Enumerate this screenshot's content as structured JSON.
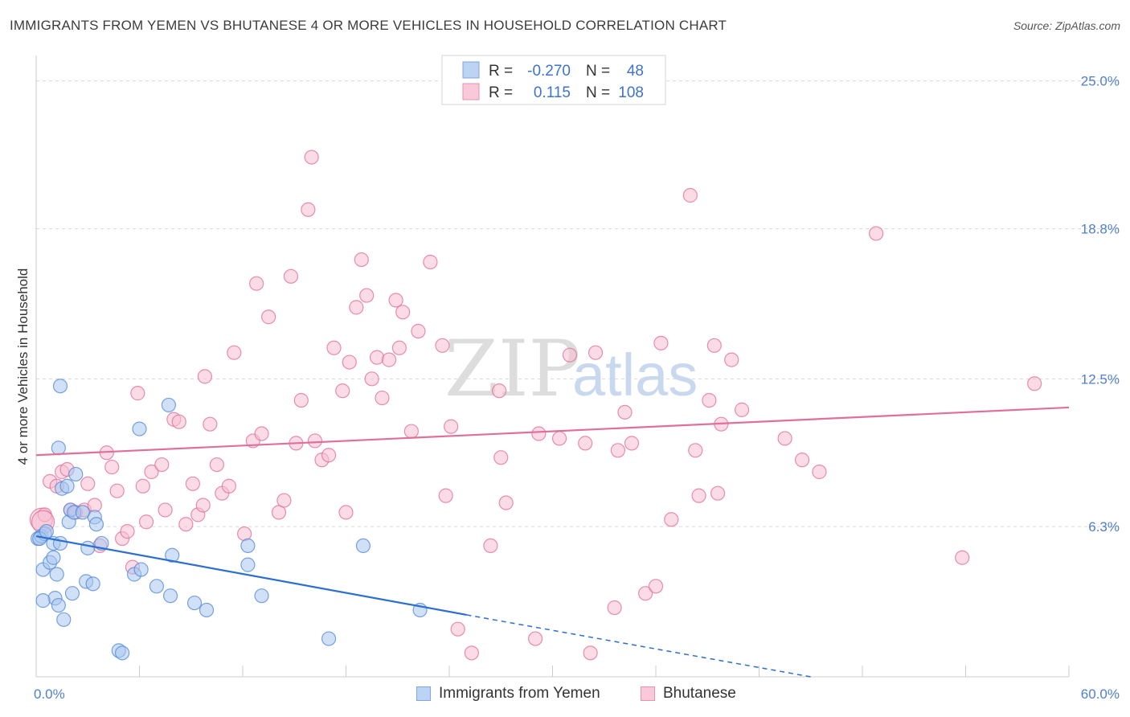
{
  "title": "IMMIGRANTS FROM YEMEN VS BHUTANESE 4 OR MORE VEHICLES IN HOUSEHOLD CORRELATION CHART",
  "source": "Source: ZipAtlas.com",
  "watermark": {
    "zip": "ZIP",
    "atlas": "atlas"
  },
  "colors": {
    "blue": "#4f86d8",
    "blue_fill": "#a9c6ee",
    "blue_line": "#2b6fd0",
    "pink": "#e06a97",
    "pink_fill": "#f7bfd2",
    "pink_line": "#e0709a",
    "grid": "#d9d9d9",
    "axis_text": "#4f7fd0"
  },
  "legend": {
    "rows": [
      {
        "r_label": "R =",
        "r_value": "-0.270",
        "n_label": "N =",
        "n_value": "48",
        "color": "blue"
      },
      {
        "r_label": "R =",
        "r_value": "0.115",
        "n_label": "N =",
        "n_value": "108",
        "color": "pink"
      }
    ]
  },
  "bottom_legend": [
    {
      "label": "Immigrants from Yemen",
      "color": "blue"
    },
    {
      "label": "Bhutanese",
      "color": "pink"
    }
  ],
  "chart_data": {
    "type": "scatter",
    "title": "IMMIGRANTS FROM YEMEN VS BHUTANESE 4 OR MORE VEHICLES IN HOUSEHOLD CORRELATION CHART",
    "xlabel": "",
    "ylabel": "4 or more Vehicles in Household",
    "xlim": [
      0,
      60
    ],
    "ylim": [
      0,
      26
    ],
    "x_tick_labels": [
      {
        "value": 0,
        "label": "0.0%"
      },
      {
        "value": 60,
        "label": "60.0%"
      }
    ],
    "y_ticks": [
      {
        "value": 6.3,
        "label": "6.3%"
      },
      {
        "value": 12.5,
        "label": "12.5%"
      },
      {
        "value": 18.8,
        "label": "18.8%"
      },
      {
        "value": 25.0,
        "label": "25.0%"
      }
    ],
    "x_minor_ticks": [
      6,
      12,
      18,
      24,
      30,
      36,
      42,
      48,
      54,
      60
    ],
    "series": [
      {
        "name": "Immigrants from Yemen",
        "color": "blue",
        "trend": {
          "x0": 0,
          "y0": 5.9,
          "x1": 25,
          "y1": 2.6,
          "dash_to_x": 45,
          "dash_to_y": 0
        },
        "points": [
          [
            0.1,
            5.8
          ],
          [
            0.3,
            5.9
          ],
          [
            0.4,
            4.5
          ],
          [
            0.5,
            6.0
          ],
          [
            0.8,
            4.8
          ],
          [
            1.0,
            5.6
          ],
          [
            1.1,
            3.3
          ],
          [
            1.0,
            5.0
          ],
          [
            0.4,
            3.2
          ],
          [
            1.2,
            4.3
          ],
          [
            1.3,
            3.0
          ],
          [
            1.4,
            5.6
          ],
          [
            1.3,
            9.6
          ],
          [
            1.5,
            7.9
          ],
          [
            1.4,
            12.2
          ],
          [
            1.6,
            2.4
          ],
          [
            1.8,
            8.0
          ],
          [
            1.9,
            6.5
          ],
          [
            2.0,
            7.0
          ],
          [
            2.2,
            6.9
          ],
          [
            2.3,
            8.5
          ],
          [
            2.1,
            3.5
          ],
          [
            3.0,
            5.4
          ],
          [
            2.9,
            4.0
          ],
          [
            3.3,
            3.9
          ],
          [
            3.4,
            6.7
          ],
          [
            3.5,
            6.4
          ],
          [
            3.8,
            5.6
          ],
          [
            4.8,
            1.1
          ],
          [
            5.0,
            1.0
          ],
          [
            5.7,
            4.3
          ],
          [
            6.0,
            10.4
          ],
          [
            6.1,
            4.5
          ],
          [
            7.0,
            3.8
          ],
          [
            7.7,
            11.4
          ],
          [
            7.8,
            3.4
          ],
          [
            7.9,
            5.1
          ],
          [
            9.2,
            3.1
          ],
          [
            9.9,
            2.8
          ],
          [
            12.3,
            5.5
          ],
          [
            12.3,
            4.7
          ],
          [
            13.1,
            3.4
          ],
          [
            17.0,
            1.6
          ],
          [
            19.0,
            5.5
          ],
          [
            22.3,
            2.8
          ],
          [
            0.2,
            5.8
          ],
          [
            0.6,
            6.1
          ],
          [
            2.7,
            6.9
          ]
        ]
      },
      {
        "name": "Bhutanese",
        "color": "pink",
        "trend": {
          "x0": 0,
          "y0": 9.3,
          "x1": 60,
          "y1": 11.3
        },
        "points": [
          [
            0.3,
            6.6
          ],
          [
            0.5,
            6.8
          ],
          [
            0.8,
            8.2
          ],
          [
            1.2,
            8.0
          ],
          [
            1.5,
            8.6
          ],
          [
            1.8,
            8.7
          ],
          [
            2.0,
            7.0
          ],
          [
            2.3,
            6.9
          ],
          [
            2.8,
            7.0
          ],
          [
            3.0,
            8.1
          ],
          [
            3.4,
            7.2
          ],
          [
            3.7,
            5.5
          ],
          [
            4.1,
            9.4
          ],
          [
            4.4,
            8.8
          ],
          [
            4.7,
            7.8
          ],
          [
            5.0,
            5.8
          ],
          [
            5.3,
            6.1
          ],
          [
            5.6,
            4.6
          ],
          [
            5.9,
            11.9
          ],
          [
            6.2,
            8.0
          ],
          [
            6.4,
            6.5
          ],
          [
            6.7,
            8.6
          ],
          [
            7.3,
            8.9
          ],
          [
            7.5,
            7.0
          ],
          [
            8.0,
            10.8
          ],
          [
            8.3,
            10.7
          ],
          [
            8.7,
            6.4
          ],
          [
            9.1,
            8.1
          ],
          [
            9.4,
            6.8
          ],
          [
            9.7,
            7.2
          ],
          [
            9.8,
            12.6
          ],
          [
            10.1,
            10.6
          ],
          [
            10.5,
            8.9
          ],
          [
            10.8,
            7.7
          ],
          [
            11.2,
            8.0
          ],
          [
            11.5,
            13.6
          ],
          [
            12.1,
            6.0
          ],
          [
            12.6,
            9.9
          ],
          [
            12.8,
            16.5
          ],
          [
            13.1,
            10.2
          ],
          [
            13.5,
            15.1
          ],
          [
            14.1,
            6.9
          ],
          [
            14.4,
            7.4
          ],
          [
            14.8,
            16.8
          ],
          [
            15.1,
            9.8
          ],
          [
            15.4,
            11.6
          ],
          [
            15.8,
            19.6
          ],
          [
            16.0,
            21.8
          ],
          [
            16.2,
            9.9
          ],
          [
            16.6,
            9.1
          ],
          [
            17.0,
            9.3
          ],
          [
            17.3,
            13.8
          ],
          [
            17.8,
            12.0
          ],
          [
            18.0,
            6.9
          ],
          [
            18.2,
            13.2
          ],
          [
            18.6,
            15.5
          ],
          [
            18.9,
            17.5
          ],
          [
            19.2,
            16.0
          ],
          [
            19.5,
            12.5
          ],
          [
            19.8,
            13.4
          ],
          [
            20.1,
            11.7
          ],
          [
            20.5,
            13.3
          ],
          [
            20.9,
            15.8
          ],
          [
            21.1,
            13.8
          ],
          [
            21.3,
            15.3
          ],
          [
            21.8,
            10.3
          ],
          [
            22.2,
            14.5
          ],
          [
            22.9,
            17.4
          ],
          [
            23.6,
            13.9
          ],
          [
            23.8,
            7.6
          ],
          [
            24.1,
            10.5
          ],
          [
            24.5,
            2.0
          ],
          [
            25.3,
            1.0
          ],
          [
            26.4,
            5.5
          ],
          [
            26.9,
            12.0
          ],
          [
            27.0,
            9.2
          ],
          [
            27.3,
            7.3
          ],
          [
            29.0,
            1.6
          ],
          [
            29.2,
            10.2
          ],
          [
            30.4,
            10.0
          ],
          [
            31.0,
            13.5
          ],
          [
            31.9,
            9.8
          ],
          [
            32.2,
            1.0
          ],
          [
            32.5,
            13.6
          ],
          [
            33.6,
            2.9
          ],
          [
            33.8,
            9.5
          ],
          [
            34.2,
            11.1
          ],
          [
            34.6,
            9.8
          ],
          [
            35.4,
            3.5
          ],
          [
            36.0,
            3.8
          ],
          [
            36.3,
            14.0
          ],
          [
            36.9,
            6.6
          ],
          [
            38.0,
            20.2
          ],
          [
            38.3,
            9.5
          ],
          [
            38.5,
            7.6
          ],
          [
            39.1,
            11.6
          ],
          [
            39.4,
            13.9
          ],
          [
            39.6,
            7.7
          ],
          [
            39.8,
            10.6
          ],
          [
            40.4,
            13.3
          ],
          [
            41.0,
            11.2
          ],
          [
            43.5,
            10.0
          ],
          [
            44.5,
            9.1
          ],
          [
            45.5,
            8.6
          ],
          [
            48.8,
            18.6
          ],
          [
            58.0,
            12.3
          ],
          [
            53.8,
            5.0
          ],
          [
            0.4,
            6.5
          ]
        ]
      }
    ]
  }
}
